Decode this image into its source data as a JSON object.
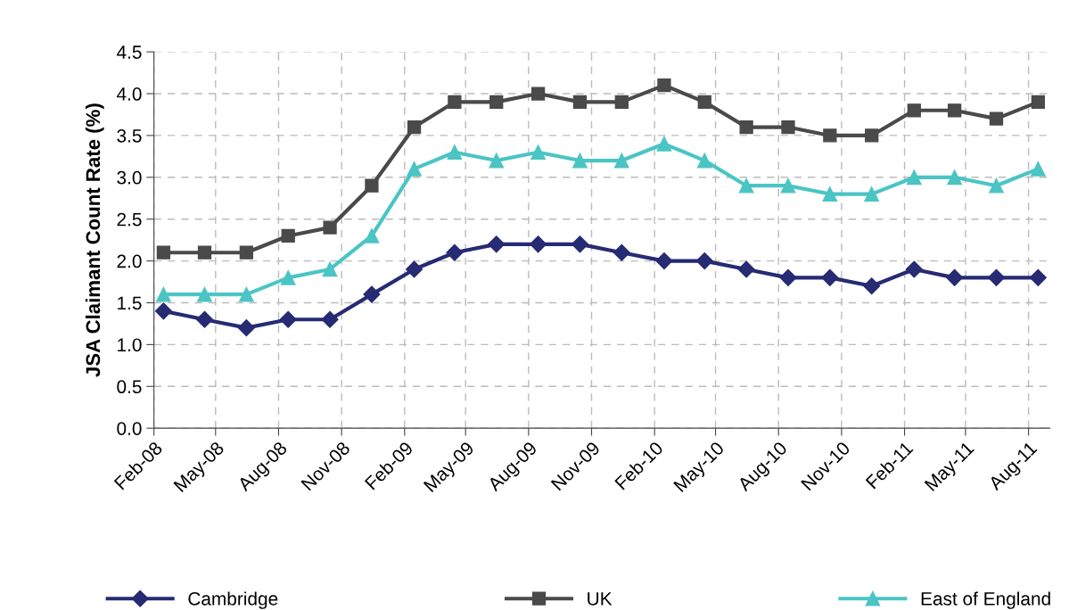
{
  "chart_data": {
    "type": "line",
    "ylabel": "JSA Claimant Count Rate (%)",
    "x": [
      "2008-02-15",
      "2008-04-15",
      "2008-06-15",
      "2008-08-15",
      "2008-10-15",
      "2008-12-15",
      "2009-02-15",
      "2009-04-15",
      "2009-06-15",
      "2009-08-15",
      "2009-10-15",
      "2009-12-15",
      "2010-02-15",
      "2010-04-15",
      "2010-06-15",
      "2010-08-15",
      "2010-10-15",
      "2010-12-15",
      "2011-02-15",
      "2011-04-15",
      "2011-06-15",
      "2011-08-15"
    ],
    "series": [
      {
        "name": "Cambridge",
        "color": "#262b73",
        "marker": "diamond",
        "values": [
          1.4,
          1.3,
          1.2,
          1.3,
          1.3,
          1.6,
          1.9,
          2.1,
          2.2,
          2.2,
          2.2,
          2.1,
          2.0,
          2.0,
          1.9,
          1.8,
          1.8,
          1.7,
          1.9,
          1.8,
          1.8,
          1.8
        ]
      },
      {
        "name": "UK",
        "color": "#4a4a4a",
        "marker": "square",
        "values": [
          2.1,
          2.1,
          2.1,
          2.3,
          2.4,
          2.9,
          3.6,
          3.9,
          3.9,
          4.0,
          3.9,
          3.9,
          4.1,
          3.9,
          3.6,
          3.6,
          3.5,
          3.5,
          3.8,
          3.8,
          3.7,
          3.9
        ]
      },
      {
        "name": "East of England",
        "color": "#4bc4c4",
        "marker": "triangle",
        "values": [
          1.6,
          1.6,
          1.6,
          1.8,
          1.9,
          2.3,
          3.1,
          3.3,
          3.2,
          3.3,
          3.2,
          3.2,
          3.4,
          3.2,
          2.9,
          2.9,
          2.8,
          2.8,
          3.0,
          3.0,
          2.9,
          3.1
        ]
      }
    ],
    "xlim": [
      "2008-02-01",
      "2011-09-01"
    ],
    "xticks": [
      {
        "value": "2008-02-01",
        "label": "Feb-08"
      },
      {
        "value": "2008-05-01",
        "label": "May-08"
      },
      {
        "value": "2008-08-01",
        "label": "Aug-08"
      },
      {
        "value": "2008-11-01",
        "label": "Nov-08"
      },
      {
        "value": "2009-02-01",
        "label": "Feb-09"
      },
      {
        "value": "2009-05-01",
        "label": "May-09"
      },
      {
        "value": "2009-08-01",
        "label": "Aug-09"
      },
      {
        "value": "2009-11-01",
        "label": "Nov-09"
      },
      {
        "value": "2010-02-01",
        "label": "Feb-10"
      },
      {
        "value": "2010-05-01",
        "label": "May-10"
      },
      {
        "value": "2010-08-01",
        "label": "Aug-10"
      },
      {
        "value": "2010-11-01",
        "label": "Nov-10"
      },
      {
        "value": "2011-02-01",
        "label": "Feb-11"
      },
      {
        "value": "2011-05-01",
        "label": "May-11"
      },
      {
        "value": "2011-08-01",
        "label": "Aug-11"
      }
    ],
    "ylim": [
      0,
      4.5
    ],
    "yticks": [
      {
        "value": 0,
        "label": "0.0"
      },
      {
        "value": 0.5,
        "label": "0.5"
      },
      {
        "value": 1,
        "label": "1.0"
      },
      {
        "value": 1.5,
        "label": "1.5"
      },
      {
        "value": 2,
        "label": "2.0"
      },
      {
        "value": 2.5,
        "label": "2.5"
      },
      {
        "value": 3,
        "label": "3.0"
      },
      {
        "value": 3.5,
        "label": "3.5"
      },
      {
        "value": 4,
        "label": "4.0"
      },
      {
        "value": 4.5,
        "label": "4.5"
      }
    ],
    "grid": true,
    "legend": "bottom",
    "line_style": "solid"
  }
}
